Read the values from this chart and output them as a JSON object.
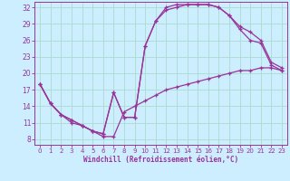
{
  "xlabel": "Windchill (Refroidissement éolien,°C)",
  "bg_color": "#cceeff",
  "grid_color": "#aaddcc",
  "line_color": "#993399",
  "xlim": [
    -0.5,
    23.5
  ],
  "ylim": [
    7,
    33
  ],
  "yticks": [
    8,
    11,
    14,
    17,
    20,
    23,
    26,
    29,
    32
  ],
  "xticks": [
    0,
    1,
    2,
    3,
    4,
    5,
    6,
    7,
    8,
    9,
    10,
    11,
    12,
    13,
    14,
    15,
    16,
    17,
    18,
    19,
    20,
    21,
    22,
    23
  ],
  "series1_x": [
    0,
    1,
    2,
    3,
    4,
    5,
    6,
    7,
    8,
    9,
    10,
    11,
    12,
    13,
    14,
    15,
    16,
    17,
    18,
    19,
    20,
    21,
    22,
    23
  ],
  "series1_y": [
    18.0,
    14.5,
    12.5,
    11.0,
    10.5,
    9.5,
    8.5,
    8.5,
    13.0,
    14.0,
    15.0,
    16.0,
    17.0,
    17.5,
    18.0,
    18.5,
    19.0,
    19.5,
    20.0,
    20.5,
    20.5,
    21.0,
    21.0,
    20.5
  ],
  "series2_x": [
    0,
    1,
    2,
    3,
    4,
    5,
    6,
    7,
    8,
    9,
    10,
    11,
    12,
    13,
    14,
    15,
    16,
    17,
    18,
    19,
    20,
    21,
    22,
    23
  ],
  "series2_y": [
    18.0,
    14.5,
    12.5,
    11.5,
    10.5,
    9.5,
    9.0,
    16.5,
    12.0,
    12.0,
    25.0,
    29.5,
    31.5,
    32.0,
    32.5,
    32.5,
    32.5,
    32.0,
    30.5,
    28.0,
    26.0,
    25.5,
    21.5,
    20.5
  ],
  "series3_x": [
    0,
    1,
    2,
    3,
    4,
    5,
    6,
    7,
    8,
    9,
    10,
    11,
    12,
    13,
    14,
    15,
    16,
    17,
    18,
    19,
    20,
    21,
    22,
    23
  ],
  "series3_y": [
    18.0,
    14.5,
    12.5,
    11.5,
    10.5,
    9.5,
    9.0,
    16.5,
    12.0,
    12.0,
    25.0,
    29.5,
    32.0,
    32.5,
    32.5,
    32.5,
    32.5,
    32.0,
    30.5,
    28.5,
    27.5,
    26.0,
    22.0,
    21.0
  ]
}
